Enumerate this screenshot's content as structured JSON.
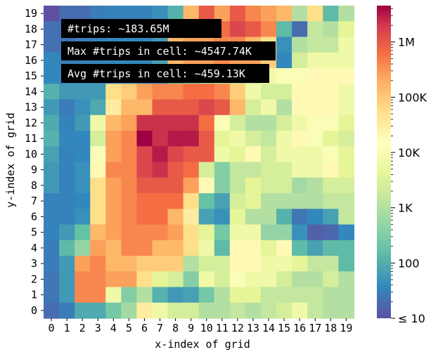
{
  "chart_data": {
    "type": "heatmap",
    "xlabel": "x-index of grid",
    "ylabel": "y-index of grid",
    "x_ticks": [
      "0",
      "1",
      "2",
      "3",
      "4",
      "5",
      "6",
      "7",
      "8",
      "9",
      "10",
      "11",
      "12",
      "13",
      "14",
      "15",
      "16",
      "17",
      "18",
      "19"
    ],
    "y_ticks": [
      "0",
      "1",
      "2",
      "3",
      "4",
      "5",
      "6",
      "7",
      "8",
      "9",
      "10",
      "11",
      "12",
      "13",
      "14",
      "15",
      "16",
      "17",
      "18",
      "19"
    ],
    "color_scale": "log",
    "colorbar": {
      "min": 10,
      "max": 4547740,
      "ticks": [
        {
          "value": 1000000,
          "label": "1M"
        },
        {
          "value": 100000,
          "label": "100K"
        },
        {
          "value": 10000,
          "label": "10K"
        },
        {
          "value": 1000,
          "label": "1K"
        },
        {
          "value": 100,
          "label": "100"
        },
        {
          "value": 10,
          "label": "≤ 10"
        }
      ]
    },
    "annotations": [
      "#trips: ~183.65M",
      "Max #trips in cell: ~4547.74K",
      "Avg #trips in cell: ~459.13K"
    ],
    "rows_top_to_bottom_levels": [
      [
        0.0,
        0.5,
        0.5,
        0.8,
        0.9,
        0.9,
        0.9,
        1.1,
        1.5,
        3.2,
        3.6,
        3.3,
        3.6,
        3.4,
        3.3,
        3.2,
        2.2,
        3.0,
        1.6,
        2.2
      ],
      [
        0.6,
        0.6,
        0.8,
        1.0,
        1.0,
        1.0,
        1.0,
        1.5,
        2.1,
        3.3,
        2.6,
        3.5,
        3.7,
        3.6,
        3.4,
        1.6,
        0.5,
        2.3,
        2.2,
        2.5
      ],
      [
        0.6,
        0.6,
        0.8,
        0.9,
        1.0,
        1.0,
        1.0,
        1.2,
        3.2,
        3.3,
        3.3,
        3.4,
        3.4,
        3.2,
        3.0,
        1.1,
        2.2,
        2.3,
        2.3,
        2.6
      ],
      [
        1.0,
        0.8,
        0.9,
        0.9,
        1.0,
        1.0,
        1.0,
        1.3,
        3.2,
        3.3,
        3.3,
        3.4,
        3.3,
        3.3,
        3.1,
        1.0,
        2.4,
        2.6,
        2.6,
        2.6
      ],
      [
        1.0,
        1.0,
        1.0,
        1.0,
        1.0,
        1.0,
        1.0,
        1.0,
        1.6,
        1.9,
        2.2,
        2.2,
        2.2,
        2.3,
        2.6,
        2.7,
        2.7,
        2.8,
        2.8,
        2.8
      ],
      [
        1.5,
        1.2,
        1.2,
        1.2,
        3.0,
        3.1,
        3.3,
        3.4,
        3.4,
        3.5,
        3.5,
        3.4,
        3.1,
        2.6,
        2.4,
        2.4,
        2.8,
        2.8,
        2.8,
        2.6
      ],
      [
        1.2,
        0.8,
        1.1,
        1.4,
        2.9,
        3.2,
        3.2,
        3.6,
        3.6,
        3.6,
        3.7,
        3.6,
        3.2,
        2.4,
        2.6,
        2.2,
        2.8,
        2.8,
        2.8,
        2.6
      ],
      [
        1.4,
        0.9,
        1.2,
        2.6,
        3.2,
        3.3,
        3.8,
        3.8,
        3.8,
        3.8,
        3.5,
        2.7,
        2.4,
        2.2,
        2.2,
        2.4,
        2.6,
        2.7,
        2.7,
        2.5
      ],
      [
        1.5,
        1.0,
        1.0,
        2.4,
        3.3,
        3.4,
        4.0,
        3.8,
        3.9,
        3.9,
        3.6,
        2.5,
        2.6,
        2.4,
        2.3,
        2.6,
        2.8,
        2.7,
        2.5,
        2.4
      ],
      [
        1.3,
        0.9,
        1.0,
        2.7,
        3.3,
        3.4,
        3.7,
        3.9,
        3.7,
        3.6,
        3.6,
        2.6,
        2.5,
        2.8,
        2.4,
        2.6,
        2.6,
        2.6,
        2.7,
        2.5
      ],
      [
        1.2,
        0.9,
        1.1,
        2.8,
        3.4,
        3.4,
        3.7,
        3.8,
        3.6,
        3.5,
        2.4,
        1.9,
        2.3,
        2.3,
        2.4,
        2.4,
        2.6,
        2.6,
        2.8,
        2.5
      ],
      [
        1.2,
        0.9,
        1.1,
        3.0,
        3.3,
        3.4,
        3.6,
        3.6,
        3.6,
        3.3,
        2.8,
        1.9,
        2.3,
        2.5,
        2.4,
        2.4,
        2.1,
        2.2,
        2.4,
        2.4
      ],
      [
        0.9,
        0.9,
        1.0,
        3.0,
        3.3,
        3.4,
        3.5,
        3.5,
        3.5,
        3.0,
        1.7,
        1.3,
        2.4,
        2.5,
        2.2,
        2.2,
        2.2,
        2.2,
        2.3,
        2.3
      ],
      [
        0.9,
        0.9,
        1.1,
        3.0,
        3.3,
        3.4,
        3.5,
        3.5,
        3.2,
        2.9,
        1.3,
        1.1,
        2.5,
        2.2,
        2.2,
        1.5,
        0.7,
        1.0,
        1.3,
        2.3
      ],
      [
        0.9,
        1.2,
        1.7,
        3.2,
        3.3,
        3.4,
        3.4,
        3.4,
        3.3,
        3.0,
        2.5,
        1.8,
        2.6,
        2.6,
        2.0,
        2.0,
        1.1,
        0.3,
        0.4,
        1.0
      ],
      [
        0.8,
        1.6,
        2.0,
        3.3,
        3.2,
        3.4,
        3.4,
        3.2,
        3.2,
        3.0,
        2.6,
        1.6,
        2.8,
        2.8,
        2.5,
        2.8,
        1.6,
        1.3,
        1.6,
        1.6
      ],
      [
        0.8,
        1.2,
        3.3,
        3.4,
        3.2,
        3.2,
        3.1,
        3.1,
        3.1,
        2.2,
        2.4,
        2.4,
        2.8,
        2.8,
        2.6,
        2.6,
        2.5,
        2.3,
        2.3,
        1.6
      ],
      [
        0.7,
        1.2,
        3.4,
        3.4,
        3.3,
        3.3,
        3.0,
        2.5,
        2.4,
        1.9,
        2.6,
        2.4,
        2.7,
        2.6,
        2.6,
        2.4,
        2.2,
        2.2,
        2.4,
        2.2
      ],
      [
        0.7,
        1.2,
        3.4,
        3.4,
        2.6,
        1.9,
        2.2,
        1.5,
        1.2,
        1.3,
        1.8,
        2.2,
        2.5,
        2.5,
        2.3,
        2.3,
        2.3,
        2.3,
        2.2,
        2.2
      ],
      [
        0.5,
        0.8,
        1.4,
        1.4,
        1.8,
        2.1,
        2.9,
        2.6,
        2.4,
        2.4,
        2.2,
        2.2,
        2.3,
        2.2,
        2.3,
        2.4,
        2.6,
        2.3,
        2.2,
        2.2
      ]
    ]
  }
}
